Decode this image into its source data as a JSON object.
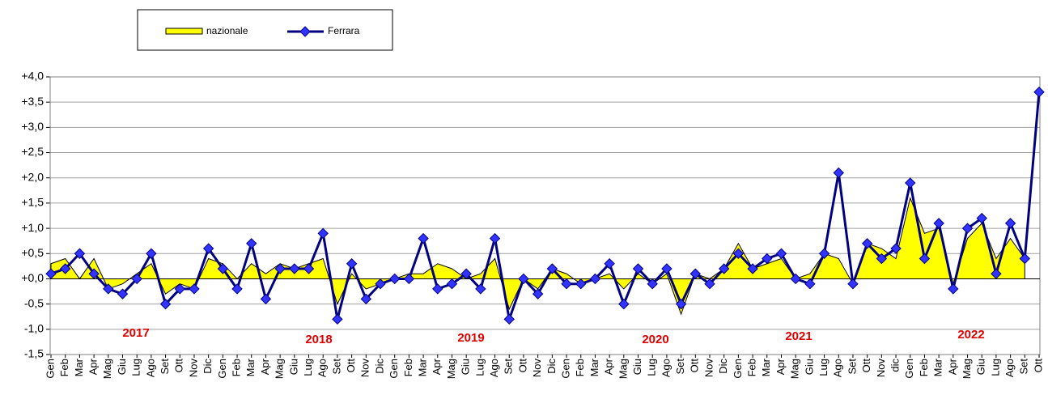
{
  "chart_data": {
    "type": "area-line",
    "categories": [
      "Gen",
      "Feb",
      "Mar",
      "Apr",
      "Mag",
      "Giu",
      "Lug",
      "Ago",
      "Set",
      "Ott",
      "Nov",
      "Dic",
      "Gen",
      "Feb",
      "Mar",
      "Apr",
      "Mag",
      "Giu",
      "Lug",
      "Ago",
      "Set",
      "Ott",
      "Nov",
      "Dic",
      "Gen",
      "Feb",
      "Mar",
      "Apr",
      "Mag",
      "Giu",
      "Lug",
      "Ago",
      "Set",
      "Ott",
      "Nov",
      "Dic",
      "Gen",
      "Feb",
      "Mar",
      "Apr",
      "Mag",
      "Giu",
      "Lug",
      "Ago",
      "Set",
      "Ott",
      "Nov",
      "Dic",
      "Gen",
      "Feb",
      "Mar",
      "Apr",
      "Mag",
      "Giu",
      "Lug",
      "Ago",
      "Set",
      "Ott",
      "Nov",
      "dic",
      "Gen",
      "Feb",
      "Mar",
      "Apr",
      "Mag",
      "Giu",
      "Lug",
      "Ago",
      "Set",
      "Ott"
    ],
    "series": [
      {
        "name": "nazionale",
        "color": "#ffff00",
        "values": [
          0.3,
          0.4,
          0.0,
          0.4,
          -0.2,
          -0.1,
          0.1,
          0.3,
          -0.3,
          -0.1,
          -0.2,
          0.4,
          0.3,
          0.0,
          0.3,
          0.1,
          0.3,
          0.2,
          0.3,
          0.4,
          -0.5,
          0.1,
          -0.2,
          -0.1,
          0.0,
          0.1,
          0.1,
          0.3,
          0.2,
          0.0,
          0.1,
          0.4,
          -0.6,
          0.0,
          -0.2,
          0.2,
          0.1,
          -0.1,
          0.0,
          0.1,
          -0.2,
          0.1,
          -0.1,
          0.1,
          -0.7,
          0.1,
          0.0,
          0.2,
          0.7,
          0.2,
          0.3,
          0.4,
          0.0,
          0.1,
          0.5,
          0.4,
          -0.1,
          0.7,
          0.6,
          0.4,
          1.6,
          0.9,
          1.0,
          -0.1,
          0.8,
          1.1,
          0.4,
          0.8,
          0.4,
          null
        ]
      },
      {
        "name": "Ferrara",
        "color": "#000080",
        "values": [
          0.1,
          0.2,
          0.5,
          0.1,
          -0.2,
          -0.3,
          0.0,
          0.5,
          -0.5,
          -0.2,
          -0.2,
          0.6,
          0.2,
          -0.2,
          0.7,
          -0.4,
          0.2,
          0.2,
          0.2,
          0.9,
          -0.8,
          0.3,
          -0.4,
          -0.1,
          0.0,
          0.0,
          0.8,
          -0.2,
          -0.1,
          0.1,
          -0.2,
          0.8,
          -0.8,
          0.0,
          -0.3,
          0.2,
          -0.1,
          -0.1,
          0.0,
          0.3,
          -0.5,
          0.2,
          -0.1,
          0.2,
          -0.5,
          0.1,
          -0.1,
          0.2,
          0.5,
          0.2,
          0.4,
          0.5,
          0.0,
          -0.1,
          0.5,
          2.1,
          -0.1,
          0.7,
          0.4,
          0.6,
          1.9,
          0.4,
          1.1,
          -0.2,
          1.0,
          1.2,
          0.1,
          1.1,
          0.4,
          3.7
        ]
      }
    ],
    "annotations": [
      "2017",
      "2018",
      "2019",
      "2020",
      "2021",
      "2022"
    ],
    "ylim": [
      -1.5,
      4.0
    ],
    "yticks": [
      {
        "value": -1.5,
        "label": "-1,5"
      },
      {
        "value": -1.0,
        "label": "-1,0"
      },
      {
        "value": -0.5,
        "label": "-0,5"
      },
      {
        "value": 0,
        "label": "+0,0"
      },
      {
        "value": 0.5,
        "label": "+0,5"
      },
      {
        "value": 1.0,
        "label": "+1,0"
      },
      {
        "value": 1.5,
        "label": "+1,5"
      },
      {
        "value": 2.0,
        "label": "+2,0"
      },
      {
        "value": 2.5,
        "label": "+2,5"
      },
      {
        "value": 3.0,
        "label": "+3,0"
      },
      {
        "value": 3.5,
        "label": "+3,5"
      },
      {
        "value": 4.0,
        "label": "+4,0"
      }
    ],
    "grid": true,
    "legend": "top-left"
  }
}
